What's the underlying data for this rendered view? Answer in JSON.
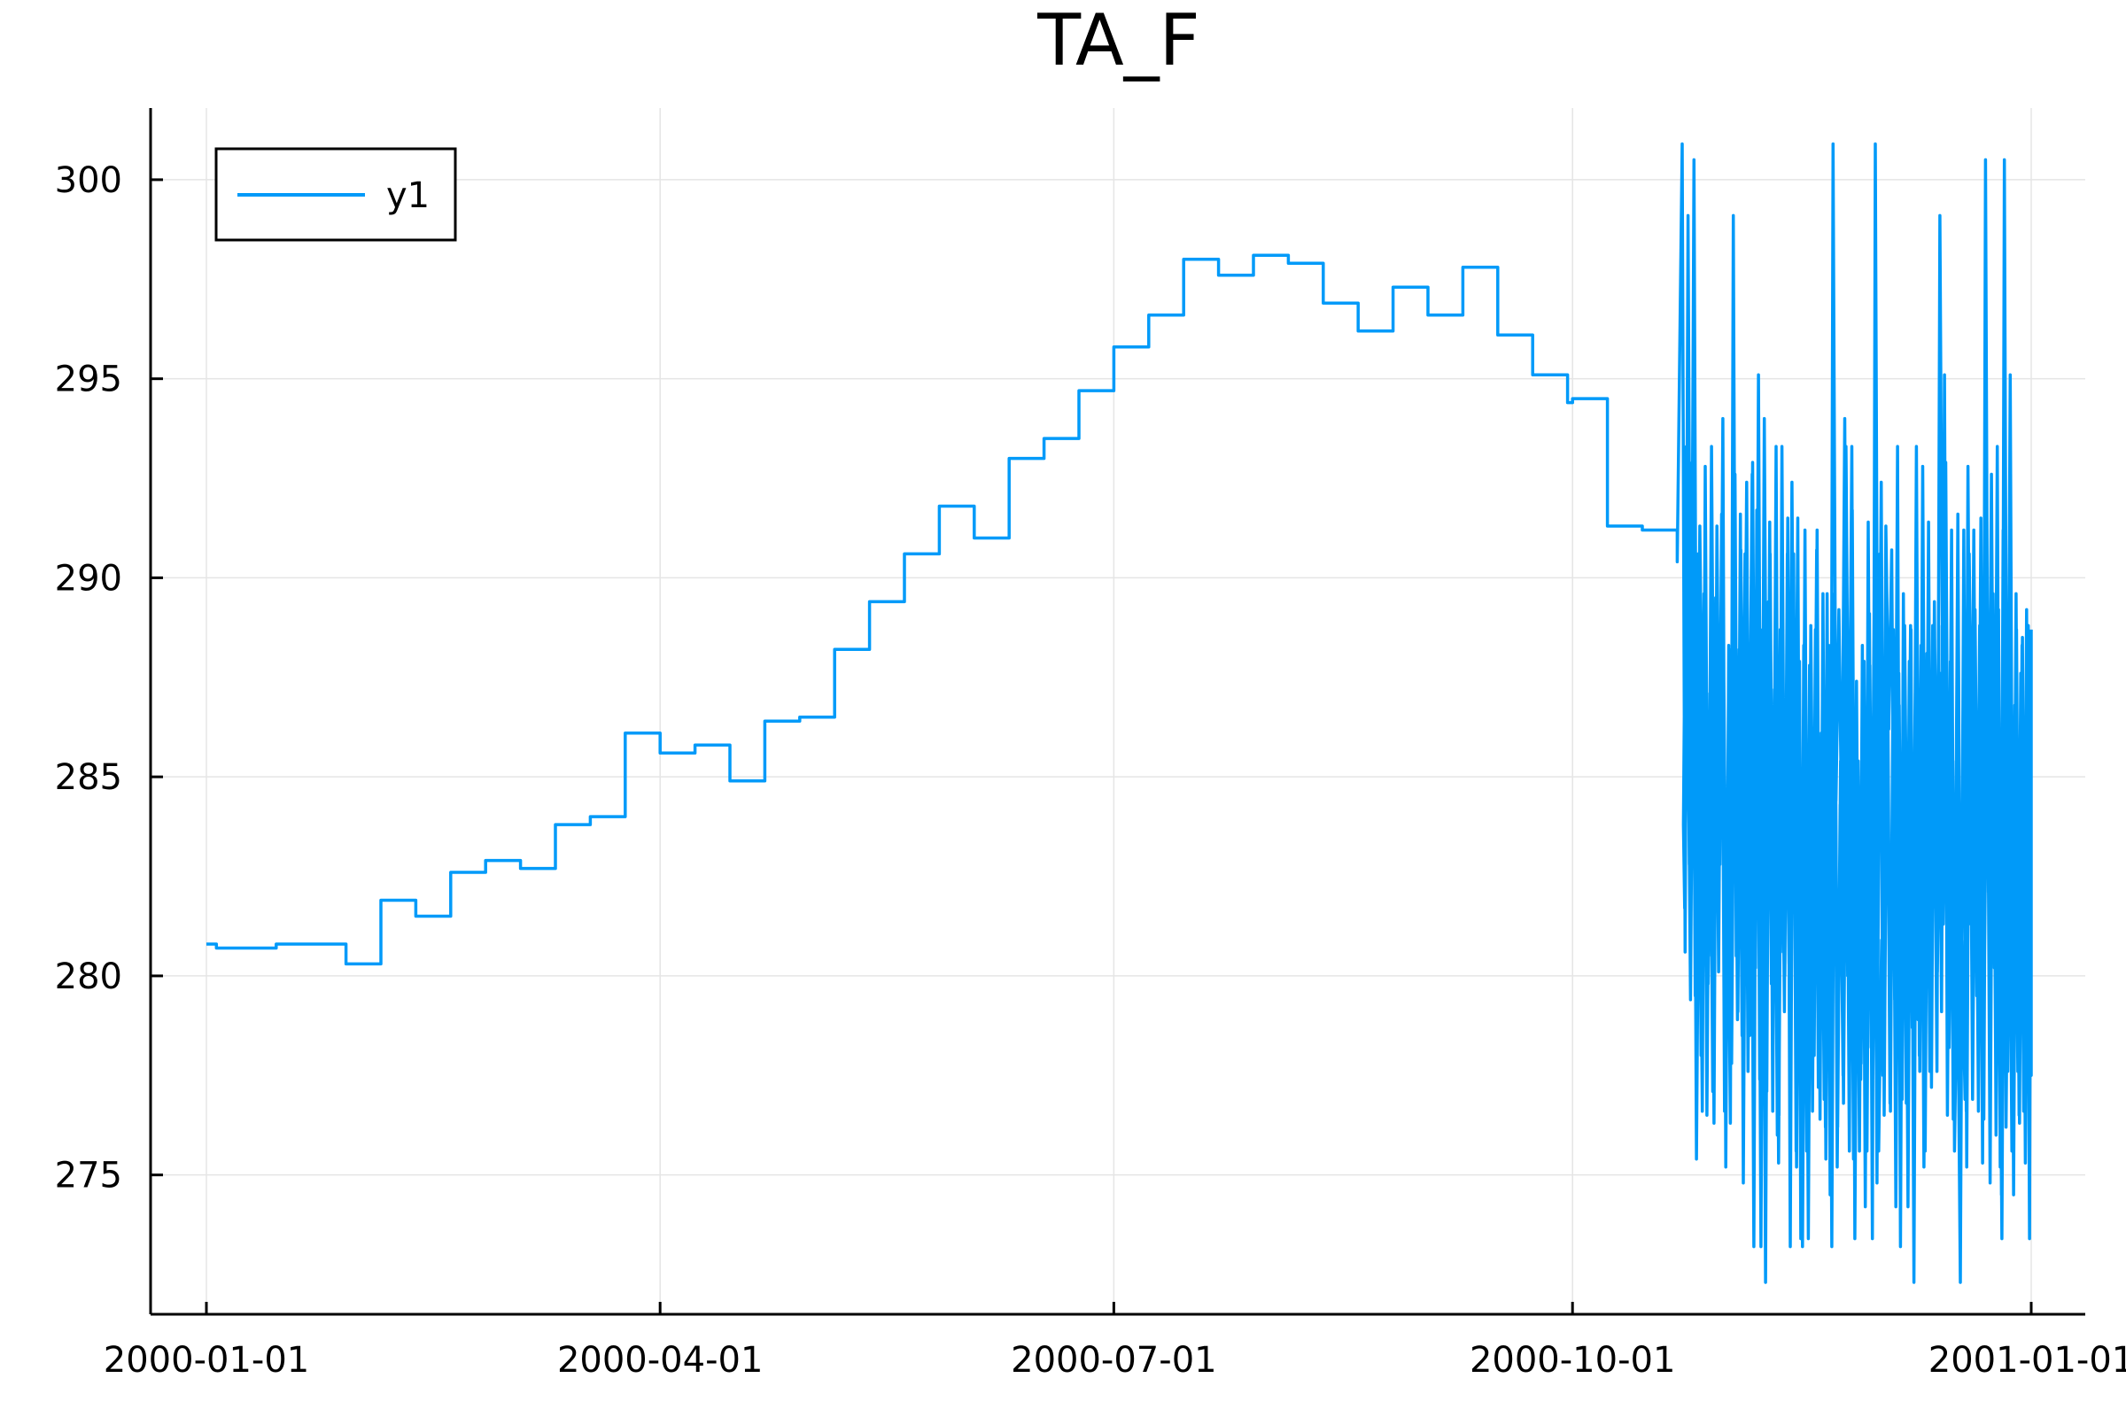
{
  "chart_data": {
    "type": "line",
    "title": "TA_F",
    "xlabel": "",
    "ylabel": "",
    "x_axis_kind": "date",
    "xlim": [
      "2000-01-01",
      "2001-01-01"
    ],
    "ylim": [
      271.5,
      301.8
    ],
    "x_ticks": [
      "2000-01-01",
      "2000-04-01",
      "2000-07-01",
      "2000-10-01",
      "2001-01-01"
    ],
    "y_ticks": [
      275,
      280,
      285,
      290,
      295,
      300
    ],
    "grid": true,
    "legend_position": "top-left",
    "series": [
      {
        "name": "y1",
        "color": "#009af9",
        "step": true,
        "x": [
          "2000-01-01",
          "2000-01-03",
          "2000-01-08",
          "2000-01-15",
          "2000-01-22",
          "2000-01-29",
          "2000-02-05",
          "2000-02-12",
          "2000-02-19",
          "2000-02-26",
          "2000-03-04",
          "2000-03-11",
          "2000-03-18",
          "2000-03-25",
          "2000-04-01",
          "2000-04-08",
          "2000-04-15",
          "2000-04-22",
          "2000-04-29",
          "2000-05-06",
          "2000-05-13",
          "2000-05-20",
          "2000-05-27",
          "2000-06-03",
          "2000-06-10",
          "2000-06-17",
          "2000-06-24",
          "2000-07-01",
          "2000-07-08",
          "2000-07-15",
          "2000-07-22",
          "2000-07-29",
          "2000-08-05",
          "2000-08-12",
          "2000-08-19",
          "2000-08-26",
          "2000-09-02",
          "2000-09-09",
          "2000-09-16",
          "2000-09-23",
          "2000-09-30",
          "2000-10-01",
          "2000-10-08",
          "2000-10-15",
          "2000-10-22",
          "2000-10-22"
        ],
        "values": [
          280.8,
          280.7,
          280.7,
          280.8,
          280.8,
          280.3,
          281.9,
          281.5,
          282.6,
          282.9,
          282.7,
          283.8,
          284.0,
          286.1,
          285.6,
          285.8,
          284.9,
          286.4,
          286.5,
          288.2,
          289.4,
          290.6,
          291.8,
          291.0,
          293.0,
          293.5,
          294.7,
          295.8,
          296.6,
          298.0,
          297.6,
          298.1,
          297.9,
          296.9,
          296.2,
          297.3,
          296.6,
          297.8,
          296.1,
          295.1,
          294.4,
          294.5,
          291.3,
          291.2,
          290.4,
          290.4
        ],
        "dense_tail": {
          "start": "2000-10-23",
          "end": "2001-01-01",
          "step_days": 0.125,
          "range": [
            272.3,
            301.0
          ],
          "values_representative": [
            300.9,
            280.6,
            299.1,
            283.8,
            300.5,
            281.7,
            291.3,
            284.4,
            286.6,
            280.5,
            293.3,
            282.1,
            288.8,
            286.2,
            289.2,
            280.3,
            288.2,
            282.8,
            292.6,
            279.1,
            290.7,
            283.4,
            292.4,
            278.5,
            292.9,
            280.2,
            295.1,
            279.4,
            294.0,
            281.6,
            290.6,
            279.5,
            293.3,
            276.5,
            293.3,
            280.0,
            291.5,
            277.6,
            290.6,
            275.2,
            287.9,
            273.2,
            286.7,
            273.4,
            287.6,
            278.0,
            291.2,
            276.4,
            289.6,
            275.4,
            288.3,
            273.2,
            289.6,
            276.2,
            285.4,
            276.8,
            287.4,
            275.6,
            291.7,
            276.5,
            285.4,
            277.8,
            287.9,
            275.6,
            287.8,
            277.4,
            287.1,
            275.6,
            280.9,
            278.7,
            288.3,
            276.6,
            288.7,
            277.1,
            286.8,
            276.9,
            287.1,
            274.2,
            288.7,
            272.3,
            289.5,
            277.6,
            292.8,
            278.9,
            291.4,
            277.2,
            289.4,
            280.1,
            287.6,
            281.3,
            288.3,
            278.2,
            286.1,
            279.8,
            291.6,
            276.6,
            291.2,
            275.2,
            289.1,
            276.9,
            287.2,
            276.6,
            289.2,
            279.5,
            288.1,
            274.8,
            289.6,
            276.0,
            284.3,
            273.4,
            288.8,
            277.6,
            290.6,
            274.5,
            288.7,
            276.3,
            288.5,
            275.3,
            288.8,
            277.5
          ]
        }
      }
    ]
  }
}
